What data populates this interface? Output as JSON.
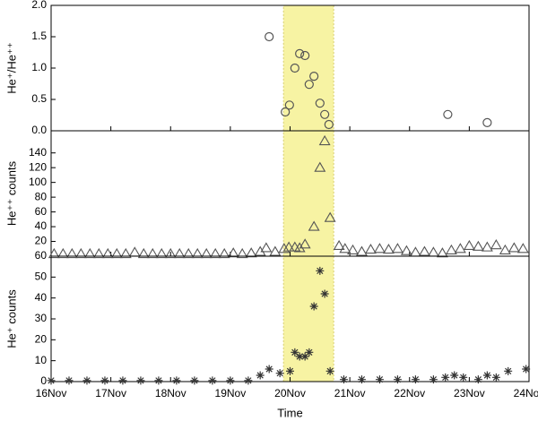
{
  "highlight": {
    "x": [
      19.89,
      20.73
    ],
    "color": "#f7f3a3"
  },
  "chart_data": [
    {
      "type": "scatter",
      "ylabel": "He⁺/He⁺⁺",
      "marker": "circle",
      "color": "#555555",
      "xlim": [
        16,
        24
      ],
      "ylim": [
        0,
        2
      ],
      "yticks": [
        {
          "value": 0,
          "label": "0.0"
        },
        0.5,
        {
          "value": 1,
          "label": "1.0"
        },
        1.5,
        {
          "value": 2,
          "label": "2.0"
        }
      ],
      "x": [
        19.65,
        19.92,
        19.99,
        20.08,
        20.16,
        20.25,
        20.32,
        20.4,
        20.5,
        20.58,
        20.65,
        22.64,
        23.3
      ],
      "values": [
        1.5,
        0.3,
        0.41,
        1.0,
        1.23,
        1.2,
        0.74,
        0.87,
        0.44,
        0.26,
        0.1,
        0.26,
        0.13
      ]
    },
    {
      "type": "scatter",
      "ylabel": "He⁺⁺ counts",
      "marker": "triangle",
      "color": "#555555",
      "xlim": [
        16,
        24
      ],
      "ylim": [
        0,
        170
      ],
      "yticks": [
        20,
        40,
        60,
        80,
        100,
        120,
        140
      ],
      "x": [
        16.05,
        16.2,
        16.35,
        16.5,
        16.65,
        16.8,
        16.95,
        17.1,
        17.25,
        17.4,
        17.55,
        17.7,
        17.85,
        18.0,
        18.15,
        18.3,
        18.45,
        18.6,
        18.75,
        18.9,
        19.05,
        19.2,
        19.35,
        19.5,
        19.6,
        19.75,
        19.9,
        19.98,
        20.08,
        20.16,
        20.25,
        20.4,
        20.5,
        20.58,
        20.67,
        20.82,
        20.92,
        21.05,
        21.2,
        21.35,
        21.5,
        21.65,
        21.8,
        21.95,
        22.1,
        22.25,
        22.4,
        22.55,
        22.7,
        22.85,
        23.0,
        23.15,
        23.3,
        23.45,
        23.6,
        23.75,
        23.9
      ],
      "values": [
        3,
        3,
        3,
        3,
        3,
        3,
        3,
        3,
        3,
        5,
        3,
        3,
        3,
        3,
        3,
        3,
        3,
        3,
        3,
        3,
        4,
        3,
        4,
        6,
        11,
        6,
        10,
        12,
        12,
        11,
        16,
        40,
        120,
        156,
        52,
        14,
        10,
        8,
        6,
        9,
        10,
        9,
        10,
        7,
        5,
        6,
        5,
        4,
        8,
        10,
        14,
        13,
        12,
        15,
        8,
        11,
        10
      ]
    },
    {
      "type": "scatter",
      "ylabel": "He⁺ counts",
      "xlabel": "Time",
      "marker": "star",
      "color": "#333333",
      "xlim": [
        16,
        24
      ],
      "ylim": [
        0,
        60
      ],
      "xticks": [
        {
          "value": 16,
          "label": "16Nov"
        },
        {
          "value": 17,
          "label": "17Nov"
        },
        {
          "value": 18,
          "label": "18Nov"
        },
        {
          "value": 19,
          "label": "19Nov"
        },
        {
          "value": 20,
          "label": "20Nov"
        },
        {
          "value": 21,
          "label": "21Nov"
        },
        {
          "value": 22,
          "label": "22Nov"
        },
        {
          "value": 23,
          "label": "23Nov"
        },
        {
          "value": 24,
          "label": "24Nov"
        }
      ],
      "yticks": [
        0,
        10,
        20,
        30,
        40,
        50,
        60
      ],
      "x": [
        16.0,
        16.3,
        16.6,
        16.9,
        17.2,
        17.5,
        17.8,
        18.1,
        18.4,
        18.7,
        19.0,
        19.3,
        19.5,
        19.65,
        19.83,
        20.0,
        20.08,
        20.16,
        20.25,
        20.32,
        20.4,
        20.5,
        20.58,
        20.67,
        20.9,
        21.2,
        21.5,
        21.8,
        22.1,
        22.4,
        22.6,
        22.75,
        22.9,
        23.15,
        23.3,
        23.45,
        23.65,
        23.95
      ],
      "values": [
        0.5,
        0.5,
        0.5,
        0.5,
        0.5,
        0.5,
        0.5,
        0.5,
        0.5,
        0.5,
        0.5,
        0.5,
        3,
        6,
        4,
        5,
        14,
        12,
        12,
        14,
        36,
        53,
        42,
        5,
        1,
        1,
        1,
        1,
        1,
        1,
        2,
        3,
        2,
        1,
        3,
        2,
        5,
        6
      ]
    }
  ]
}
